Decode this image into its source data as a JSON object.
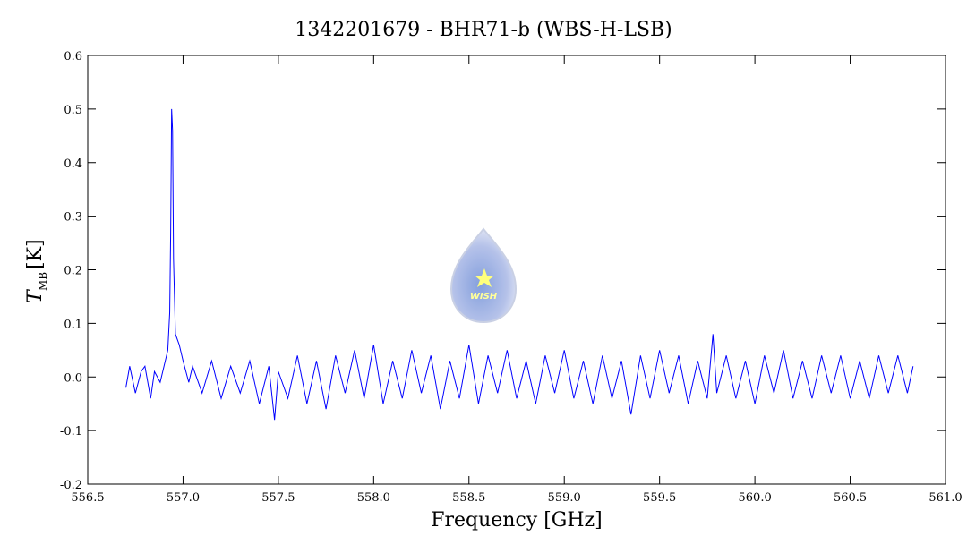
{
  "chart_data": {
    "type": "line",
    "title": "1342201679 - BHR71-b (WBS-H-LSB)",
    "xlabel": "Frequency [GHz]",
    "ylabel": "T",
    "ylabel_sub": "MB",
    "ylabel_unit": "[K]",
    "logo_text": "WISH",
    "color": "#0000ff",
    "xlim": [
      556.5,
      561.0
    ],
    "ylim": [
      -0.2,
      0.6
    ],
    "xticks": [
      556.5,
      {
        "value": 557,
        "label": "557.0"
      },
      557.5,
      {
        "value": 558,
        "label": "558.0"
      },
      558.5,
      {
        "value": 559,
        "label": "559.0"
      },
      559.5,
      {
        "value": 560,
        "label": "560.0"
      },
      560.5,
      {
        "value": 561,
        "label": "561.0"
      }
    ],
    "yticks": [
      -0.2,
      -0.1,
      {
        "value": 0,
        "label": "0.0"
      },
      0.1,
      0.2,
      0.3,
      0.4,
      0.5,
      0.6
    ],
    "x": [
      556.7,
      556.72,
      556.75,
      556.78,
      556.8,
      556.83,
      556.85,
      556.88,
      556.9,
      556.92,
      556.93,
      556.935,
      556.94,
      556.945,
      556.95,
      556.96,
      556.98,
      557.0,
      557.03,
      557.05,
      557.1,
      557.15,
      557.2,
      557.25,
      557.3,
      557.35,
      557.4,
      557.45,
      557.48,
      557.5,
      557.55,
      557.6,
      557.65,
      557.7,
      557.75,
      557.8,
      557.85,
      557.9,
      557.95,
      558.0,
      558.05,
      558.1,
      558.15,
      558.2,
      558.25,
      558.3,
      558.35,
      558.4,
      558.45,
      558.5,
      558.55,
      558.6,
      558.65,
      558.7,
      558.75,
      558.8,
      558.85,
      558.9,
      558.95,
      559.0,
      559.05,
      559.1,
      559.15,
      559.2,
      559.25,
      559.3,
      559.35,
      559.4,
      559.45,
      559.5,
      559.55,
      559.6,
      559.65,
      559.7,
      559.75,
      559.78,
      559.8,
      559.85,
      559.9,
      559.95,
      560.0,
      560.05,
      560.1,
      560.15,
      560.2,
      560.25,
      560.3,
      560.35,
      560.4,
      560.45,
      560.5,
      560.55,
      560.6,
      560.65,
      560.7,
      560.75,
      560.8,
      560.83
    ],
    "values": [
      -0.02,
      0.02,
      -0.03,
      0.01,
      0.02,
      -0.04,
      0.01,
      -0.01,
      0.02,
      0.05,
      0.12,
      0.27,
      0.5,
      0.46,
      0.22,
      0.08,
      0.06,
      0.03,
      -0.01,
      0.02,
      -0.03,
      0.03,
      -0.04,
      0.02,
      -0.03,
      0.03,
      -0.05,
      0.02,
      -0.08,
      0.01,
      -0.04,
      0.04,
      -0.05,
      0.03,
      -0.06,
      0.04,
      -0.03,
      0.05,
      -0.04,
      0.06,
      -0.05,
      0.03,
      -0.04,
      0.05,
      -0.03,
      0.04,
      -0.06,
      0.03,
      -0.04,
      0.06,
      -0.05,
      0.04,
      -0.03,
      0.05,
      -0.04,
      0.03,
      -0.05,
      0.04,
      -0.03,
      0.05,
      -0.04,
      0.03,
      -0.05,
      0.04,
      -0.04,
      0.03,
      -0.07,
      0.04,
      -0.04,
      0.05,
      -0.03,
      0.04,
      -0.05,
      0.03,
      -0.04,
      0.08,
      -0.03,
      0.04,
      -0.04,
      0.03,
      -0.05,
      0.04,
      -0.03,
      0.05,
      -0.04,
      0.03,
      -0.04,
      0.04,
      -0.03,
      0.04,
      -0.04,
      0.03,
      -0.04,
      0.04,
      -0.03,
      0.04,
      -0.03,
      0.02
    ]
  }
}
